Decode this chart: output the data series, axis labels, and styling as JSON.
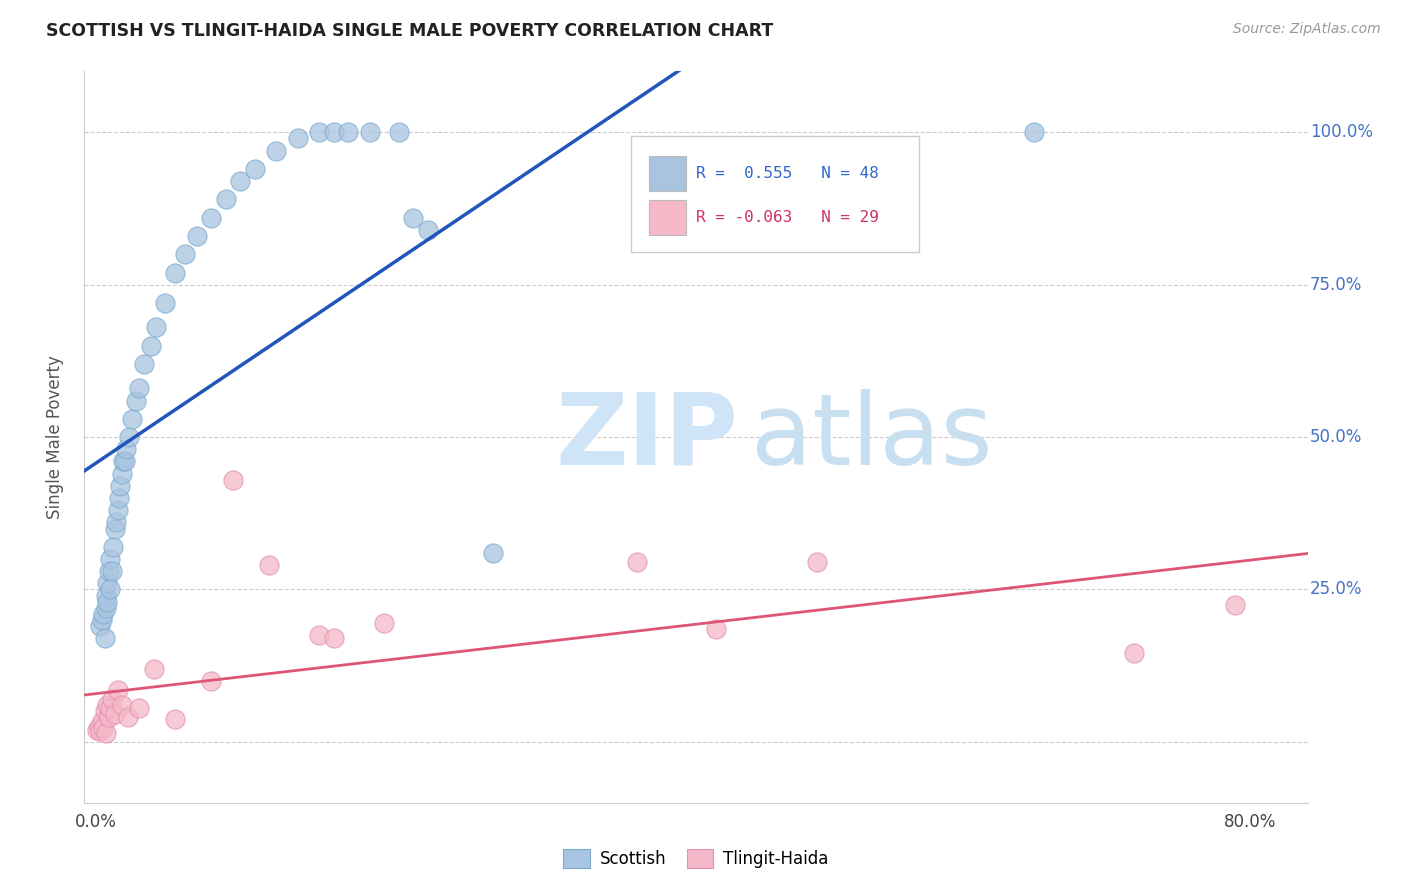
{
  "title": "SCOTTISH VS TLINGIT-HAIDA SINGLE MALE POVERTY CORRELATION CHART",
  "source": "Source: ZipAtlas.com",
  "ylabel": "Single Male Poverty",
  "scottish_color": "#a8c4e0",
  "scottish_edge": "#7aaace",
  "tlingit_color": "#f5b8c8",
  "tlingit_edge": "#e090b0",
  "scottish_line_color": "#2255bb",
  "tlingit_line_color": "#dd5577",
  "r_scottish_str": "R =  0.555",
  "n_scottish_str": "N = 48",
  "r_tlingit_str": "R = -0.063",
  "n_tlingit_str": "N = 29",
  "xlim": [
    -0.008,
    0.84
  ],
  "ylim": [
    -0.1,
    1.1
  ],
  "x_tick_pos": [
    0.0,
    0.1,
    0.2,
    0.3,
    0.4,
    0.5,
    0.6,
    0.7,
    0.8
  ],
  "x_tick_labels": [
    "0.0%",
    "",
    "",
    "",
    "",
    "",
    "",
    "",
    "80.0%"
  ],
  "y_tick_pos": [
    0.0,
    0.25,
    0.5,
    0.75,
    1.0
  ],
  "y_tick_labels_right": [
    "",
    "25.0%",
    "50.0%",
    "75.0%",
    "100.0%"
  ],
  "scottish_x": [
    0.003,
    0.004,
    0.005,
    0.006,
    0.007,
    0.007,
    0.008,
    0.008,
    0.009,
    0.01,
    0.01,
    0.011,
    0.012,
    0.013,
    0.014,
    0.015,
    0.016,
    0.017,
    0.018,
    0.019,
    0.02,
    0.021,
    0.023,
    0.025,
    0.028,
    0.03,
    0.033,
    0.038,
    0.042,
    0.048,
    0.055,
    0.062,
    0.07,
    0.08,
    0.09,
    0.1,
    0.11,
    0.125,
    0.14,
    0.155,
    0.165,
    0.175,
    0.19,
    0.21,
    0.22,
    0.23,
    0.275,
    0.65
  ],
  "scottish_y": [
    0.19,
    0.2,
    0.21,
    0.17,
    0.22,
    0.24,
    0.23,
    0.26,
    0.28,
    0.25,
    0.3,
    0.28,
    0.32,
    0.35,
    0.36,
    0.38,
    0.4,
    0.42,
    0.44,
    0.46,
    0.46,
    0.48,
    0.5,
    0.53,
    0.56,
    0.58,
    0.62,
    0.65,
    0.68,
    0.72,
    0.77,
    0.8,
    0.83,
    0.86,
    0.89,
    0.92,
    0.94,
    0.97,
    0.99,
    1.0,
    1.0,
    1.0,
    1.0,
    1.0,
    0.86,
    0.84,
    0.31,
    1.0
  ],
  "tlingit_x": [
    0.001,
    0.002,
    0.003,
    0.004,
    0.005,
    0.006,
    0.007,
    0.008,
    0.009,
    0.01,
    0.011,
    0.013,
    0.015,
    0.018,
    0.022,
    0.03,
    0.04,
    0.055,
    0.08,
    0.095,
    0.12,
    0.155,
    0.165,
    0.2,
    0.375,
    0.43,
    0.5,
    0.72,
    0.79
  ],
  "tlingit_y": [
    0.02,
    0.025,
    0.018,
    0.035,
    0.022,
    0.05,
    0.015,
    0.06,
    0.04,
    0.055,
    0.07,
    0.045,
    0.085,
    0.06,
    0.04,
    0.055,
    0.12,
    0.038,
    0.1,
    0.43,
    0.29,
    0.175,
    0.17,
    0.195,
    0.295,
    0.185,
    0.295,
    0.145,
    0.225
  ],
  "watermark_zip_color": "#d0e4f7",
  "watermark_atlas_color": "#c8dff0",
  "legend_r_color": "#3366cc",
  "legend_tlingit_r_color": "#cc3366"
}
